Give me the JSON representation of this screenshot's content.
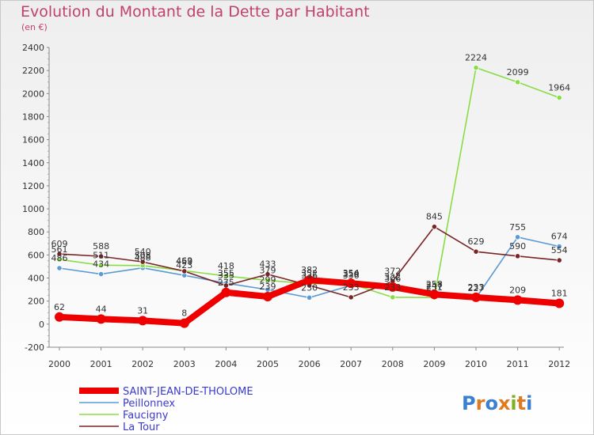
{
  "chart_data": {
    "type": "line",
    "title": "Evolution du Montant de la Dette par Habitant",
    "subtitle": "(en €)",
    "xlabel": "",
    "ylabel": "",
    "ylim": [
      -200,
      2400
    ],
    "yticks": [
      -200,
      0,
      200,
      400,
      600,
      800,
      1000,
      1200,
      1400,
      1600,
      1800,
      2000,
      2200,
      2400
    ],
    "grid": false,
    "legend_position": "bottom-left",
    "categories": [
      "2000",
      "2001",
      "2002",
      "2003",
      "2004",
      "2005",
      "2006",
      "2007",
      "2008",
      "2009",
      "2010",
      "2011",
      "2012"
    ],
    "series": [
      {
        "name": "SAINT-JEAN-DE-THOLOME",
        "color": "#ee0000",
        "width": "thick",
        "values": [
          62,
          44,
          31,
          8,
          275,
          239,
          382,
          354,
          322,
          258,
          233,
          209,
          181
        ]
      },
      {
        "name": "Peillonnex",
        "color": "#5b9bd5",
        "width": "thin",
        "values": [
          486,
          434,
          488,
          423,
          355,
          299,
          230,
          336,
          306,
          247,
          227,
          755,
          674
        ]
      },
      {
        "name": "Faucigny",
        "color": "#88dd44",
        "width": "thin",
        "values": [
          561,
          511,
          508,
          463,
          418,
          379,
          352,
          350,
          233,
          231,
          2224,
          2099,
          1964
        ]
      },
      {
        "name": "La Tour",
        "color": "#7a2525",
        "width": "thin",
        "values": [
          609,
          588,
          540,
          459,
          335,
          433,
          336,
          233,
          372,
          845,
          629,
          590,
          554
        ]
      }
    ]
  },
  "logo": {
    "text": "Proxiti"
  }
}
